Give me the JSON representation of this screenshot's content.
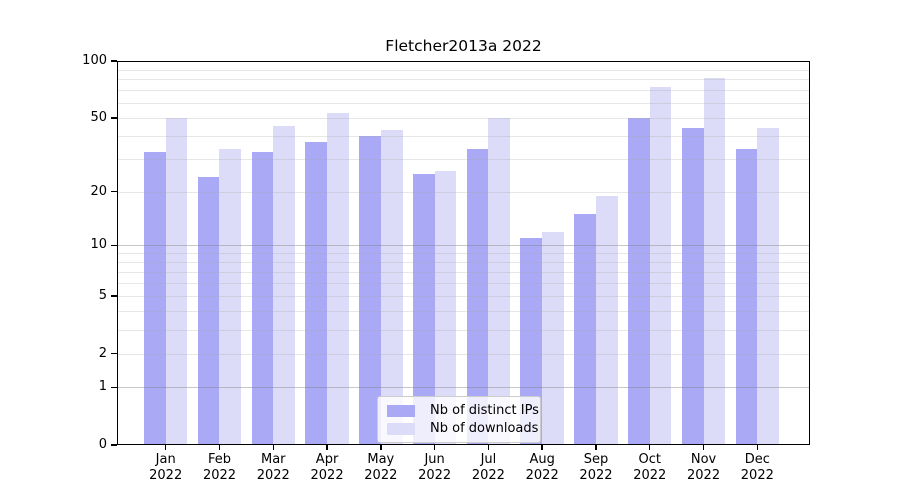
{
  "title": "Fletcher2013a 2022",
  "colors": {
    "distinct_ips_bar": "#a9a9f5",
    "downloads_bar": "#dcdcf8",
    "grid_decade": "rgba(125,125,125,0.42)",
    "grid_light": "rgba(170,170,170,0.28)",
    "spine": "#000000",
    "legend_border": "#cccccc",
    "legend_background": "rgba(255,255,255,0.8)"
  },
  "chart_data": {
    "type": "bar",
    "title": "Fletcher2013a 2022",
    "categories": [
      "Jan",
      "Feb",
      "Mar",
      "Apr",
      "May",
      "Jun",
      "Jul",
      "Aug",
      "Sep",
      "Oct",
      "Nov",
      "Dec"
    ],
    "year_label": "2022",
    "series": [
      {
        "name": "Nb of distinct IPs",
        "color": "#a9a9f5",
        "values": [
          33,
          24,
          33,
          37,
          40,
          25,
          34,
          11,
          15,
          50,
          44,
          34
        ]
      },
      {
        "name": "Nb of downloads",
        "color": "#dcdcf8",
        "values": [
          50,
          34,
          45,
          53,
          43,
          26,
          50,
          12,
          19,
          73,
          81,
          44
        ]
      }
    ],
    "xlabel": "",
    "ylabel": "",
    "y_axis": {
      "scale": "log1p",
      "range": [
        0,
        100
      ],
      "ticks": [
        0,
        1,
        2,
        5,
        10,
        20,
        50,
        100
      ],
      "decade_gridlines": [
        1,
        10
      ],
      "light_gridlines": [
        2,
        5,
        20,
        50
      ],
      "minor_gridlines": [
        3,
        4,
        6,
        7,
        8,
        9,
        30,
        40,
        60,
        70,
        80,
        90
      ]
    },
    "grid": true,
    "legend": {
      "position": "lower center",
      "labels": [
        "Nb of distinct IPs",
        "Nb of downloads"
      ]
    }
  }
}
